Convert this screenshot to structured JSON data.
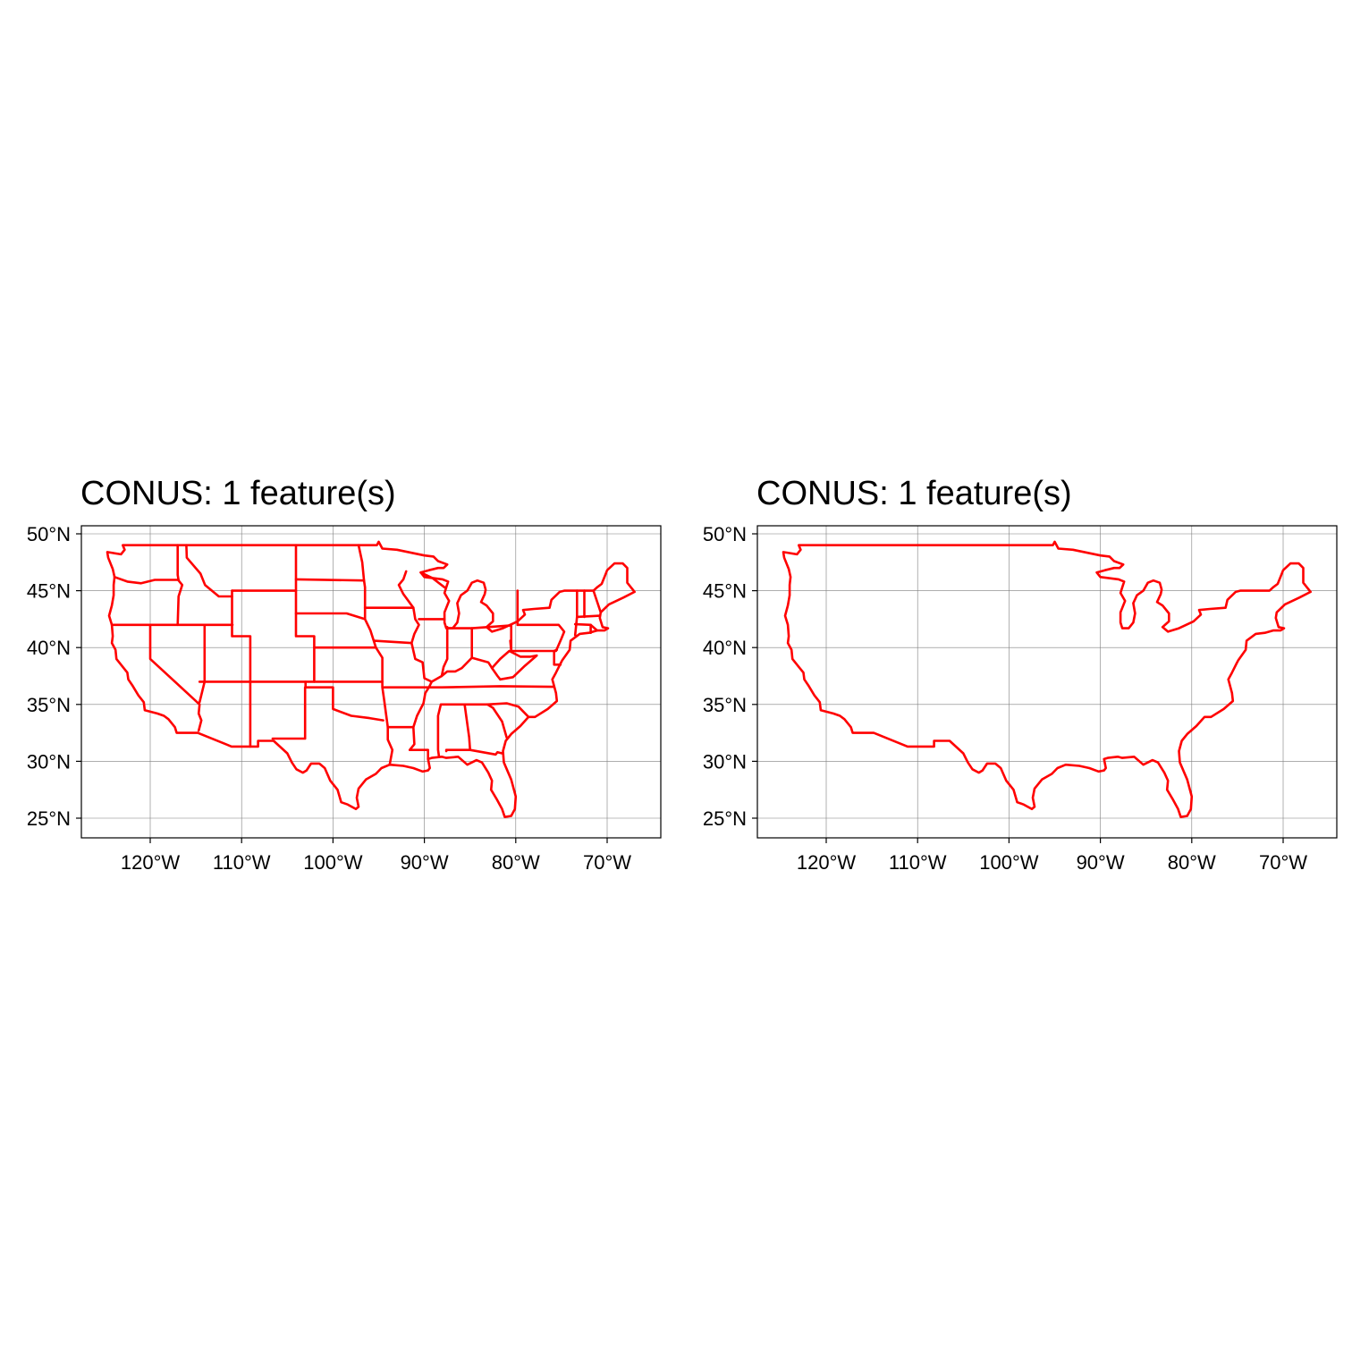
{
  "colors": {
    "outline": "#ff0000",
    "grid": "#7f7f7f",
    "frame": "#000000",
    "background": "#ffffff"
  },
  "axes": {
    "lon_ticks": [
      -120,
      -110,
      -100,
      -90,
      -80,
      -70
    ],
    "lat_ticks": [
      25,
      30,
      35,
      40,
      45,
      50
    ],
    "lon_labels": [
      "120°W",
      "110°W",
      "100°W",
      "90°W",
      "80°W",
      "70°W"
    ],
    "lat_labels": [
      "25°N",
      "30°N",
      "35°N",
      "40°N",
      "45°N",
      "50°N"
    ],
    "xlim": [
      -127.5,
      -64.2
    ],
    "ylim": [
      23.3,
      50.8
    ],
    "grid": true
  },
  "panels": [
    {
      "id": "left",
      "title": "CONUS: 1 feature(s)",
      "show_state_borders": true
    },
    {
      "id": "right",
      "title": "CONUS: 1 feature(s)",
      "show_state_borders": false
    }
  ],
  "map_data": {
    "conus_outline": [
      [
        -123.0,
        49.0
      ],
      [
        -95.2,
        49.0
      ],
      [
        -95.0,
        49.3
      ],
      [
        -94.6,
        48.7
      ],
      [
        -93.0,
        48.6
      ],
      [
        -90.0,
        48.1
      ],
      [
        -89.0,
        48.0
      ],
      [
        -88.5,
        47.6
      ],
      [
        -87.5,
        47.3
      ],
      [
        -87.9,
        47.0
      ],
      [
        -88.5,
        47.0
      ],
      [
        -89.5,
        46.8
      ],
      [
        -90.4,
        46.6
      ],
      [
        -90.0,
        46.2
      ],
      [
        -88.0,
        46.0
      ],
      [
        -87.4,
        45.8
      ],
      [
        -87.6,
        45.3
      ],
      [
        -87.8,
        44.8
      ],
      [
        -87.3,
        44.1
      ],
      [
        -87.8,
        43.1
      ],
      [
        -87.8,
        42.2
      ],
      [
        -87.6,
        41.7
      ],
      [
        -86.9,
        41.7
      ],
      [
        -86.4,
        42.2
      ],
      [
        -86.2,
        43.0
      ],
      [
        -86.4,
        43.9
      ],
      [
        -86.0,
        44.6
      ],
      [
        -85.3,
        45.0
      ],
      [
        -84.8,
        45.7
      ],
      [
        -84.2,
        45.9
      ],
      [
        -83.5,
        45.7
      ],
      [
        -83.3,
        45.1
      ],
      [
        -83.4,
        44.7
      ],
      [
        -83.8,
        44.0
      ],
      [
        -83.2,
        43.7
      ],
      [
        -82.5,
        43.0
      ],
      [
        -82.5,
        42.3
      ],
      [
        -83.2,
        41.8
      ],
      [
        -82.6,
        41.4
      ],
      [
        -81.4,
        41.7
      ],
      [
        -79.8,
        42.3
      ],
      [
        -79.0,
        42.9
      ],
      [
        -79.2,
        43.3
      ],
      [
        -78.0,
        43.4
      ],
      [
        -76.3,
        43.5
      ],
      [
        -76.1,
        44.2
      ],
      [
        -75.2,
        44.9
      ],
      [
        -74.7,
        45.0
      ],
      [
        -71.5,
        45.0
      ],
      [
        -71.1,
        45.3
      ],
      [
        -70.6,
        45.6
      ],
      [
        -70.2,
        46.4
      ],
      [
        -70.0,
        46.8
      ],
      [
        -69.2,
        47.4
      ],
      [
        -68.3,
        47.4
      ],
      [
        -67.8,
        47.0
      ],
      [
        -67.8,
        45.7
      ],
      [
        -67.0,
        44.9
      ],
      [
        -68.2,
        44.4
      ],
      [
        -69.8,
        43.8
      ],
      [
        -70.7,
        43.1
      ],
      [
        -70.8,
        42.6
      ],
      [
        -70.5,
        41.8
      ],
      [
        -69.9,
        41.7
      ],
      [
        -70.3,
        41.5
      ],
      [
        -71.1,
        41.5
      ],
      [
        -72.0,
        41.3
      ],
      [
        -73.0,
        41.2
      ],
      [
        -74.0,
        40.6
      ],
      [
        -74.1,
        39.8
      ],
      [
        -74.9,
        38.9
      ],
      [
        -75.1,
        38.6
      ],
      [
        -75.6,
        37.8
      ],
      [
        -76.0,
        37.2
      ],
      [
        -75.6,
        36.0
      ],
      [
        -75.5,
        35.3
      ],
      [
        -76.5,
        34.6
      ],
      [
        -77.9,
        33.9
      ],
      [
        -78.6,
        33.9
      ],
      [
        -79.5,
        33.1
      ],
      [
        -80.5,
        32.4
      ],
      [
        -81.1,
        31.8
      ],
      [
        -81.4,
        30.9
      ],
      [
        -81.3,
        29.9
      ],
      [
        -80.5,
        28.4
      ],
      [
        -80.0,
        26.9
      ],
      [
        -80.1,
        25.8
      ],
      [
        -80.5,
        25.2
      ],
      [
        -81.2,
        25.1
      ],
      [
        -81.5,
        25.8
      ],
      [
        -82.1,
        26.7
      ],
      [
        -82.7,
        27.5
      ],
      [
        -82.6,
        28.3
      ],
      [
        -83.0,
        29.0
      ],
      [
        -83.7,
        29.9
      ],
      [
        -84.3,
        30.1
      ],
      [
        -85.3,
        29.7
      ],
      [
        -86.3,
        30.4
      ],
      [
        -87.6,
        30.3
      ],
      [
        -88.1,
        30.4
      ],
      [
        -89.2,
        30.3
      ],
      [
        -89.6,
        30.2
      ],
      [
        -89.4,
        29.4
      ],
      [
        -89.6,
        29.2
      ],
      [
        -90.2,
        29.1
      ],
      [
        -91.2,
        29.4
      ],
      [
        -92.3,
        29.6
      ],
      [
        -93.8,
        29.7
      ],
      [
        -94.7,
        29.4
      ],
      [
        -95.3,
        28.9
      ],
      [
        -96.4,
        28.4
      ],
      [
        -97.2,
        27.6
      ],
      [
        -97.4,
        26.8
      ],
      [
        -97.2,
        26.0
      ],
      [
        -97.5,
        25.8
      ],
      [
        -98.4,
        26.2
      ],
      [
        -99.1,
        26.4
      ],
      [
        -99.5,
        27.5
      ],
      [
        -100.3,
        28.3
      ],
      [
        -100.9,
        29.4
      ],
      [
        -101.5,
        29.8
      ],
      [
        -102.4,
        29.8
      ],
      [
        -102.9,
        29.2
      ],
      [
        -103.3,
        29.0
      ],
      [
        -104.0,
        29.3
      ],
      [
        -104.5,
        29.9
      ],
      [
        -105.0,
        30.7
      ],
      [
        -106.5,
        31.8
      ],
      [
        -108.2,
        31.8
      ],
      [
        -108.2,
        31.3
      ],
      [
        -111.1,
        31.3
      ],
      [
        -114.8,
        32.5
      ],
      [
        -117.1,
        32.5
      ],
      [
        -117.3,
        33.0
      ],
      [
        -118.0,
        33.7
      ],
      [
        -118.5,
        34.0
      ],
      [
        -119.2,
        34.2
      ],
      [
        -120.6,
        34.5
      ],
      [
        -120.7,
        35.2
      ],
      [
        -121.3,
        35.8
      ],
      [
        -121.9,
        36.6
      ],
      [
        -122.4,
        37.2
      ],
      [
        -122.5,
        37.8
      ],
      [
        -123.0,
        38.3
      ],
      [
        -123.7,
        39.0
      ],
      [
        -123.8,
        39.8
      ],
      [
        -124.2,
        40.4
      ],
      [
        -124.1,
        41.0
      ],
      [
        -124.2,
        42.0
      ],
      [
        -124.5,
        42.8
      ],
      [
        -124.2,
        43.7
      ],
      [
        -124.0,
        44.6
      ],
      [
        -124.0,
        45.5
      ],
      [
        -123.9,
        46.2
      ],
      [
        -124.1,
        46.9
      ],
      [
        -124.6,
        47.9
      ],
      [
        -124.7,
        48.4
      ],
      [
        -123.2,
        48.2
      ],
      [
        -122.8,
        48.6
      ],
      [
        -123.0,
        49.0
      ]
    ],
    "state_borders": [
      [
        [
          -117.0,
          49.0
        ],
        [
          -117.0,
          46.4
        ],
        [
          -116.9,
          45.9
        ],
        [
          -116.5,
          45.5
        ],
        [
          -116.9,
          44.5
        ],
        [
          -117.0,
          42.0
        ]
      ],
      [
        [
          -124.2,
          42.0
        ],
        [
          -111.0,
          42.0
        ]
      ],
      [
        [
          -120.0,
          42.0
        ],
        [
          -120.0,
          39.0
        ],
        [
          -114.6,
          35.0
        ],
        [
          -114.7,
          34.2
        ],
        [
          -114.4,
          33.6
        ],
        [
          -114.7,
          32.7
        ]
      ],
      [
        [
          -123.9,
          46.2
        ],
        [
          -122.5,
          45.8
        ],
        [
          -121.0,
          45.65
        ],
        [
          -119.5,
          45.95
        ],
        [
          -116.9,
          45.95
        ]
      ],
      [
        [
          -114.05,
          42.0
        ],
        [
          -114.05,
          37.0
        ]
      ],
      [
        [
          -111.05,
          45.0
        ],
        [
          -111.05,
          41.0
        ],
        [
          -109.05,
          41.0
        ],
        [
          -109.05,
          31.3
        ]
      ],
      [
        [
          -114.6,
          37.0
        ],
        [
          -94.6,
          37.0
        ]
      ],
      [
        [
          -114.05,
          37.0
        ],
        [
          -114.6,
          35.2
        ]
      ],
      [
        [
          -111.05,
          45.0
        ],
        [
          -104.05,
          45.0
        ]
      ],
      [
        [
          -104.05,
          49.0
        ],
        [
          -104.05,
          41.0
        ],
        [
          -102.05,
          41.0
        ],
        [
          -102.05,
          37.0
        ]
      ],
      [
        [
          -111.05,
          44.5
        ],
        [
          -112.5,
          44.5
        ],
        [
          -114.0,
          45.5
        ],
        [
          -114.5,
          46.5
        ],
        [
          -116.0,
          47.9
        ],
        [
          -116.05,
          49.0
        ]
      ],
      [
        [
          -104.05,
          46.0
        ],
        [
          -96.6,
          45.9
        ]
      ],
      [
        [
          -104.05,
          43.0
        ],
        [
          -98.5,
          43.0
        ],
        [
          -96.5,
          42.5
        ]
      ],
      [
        [
          -102.05,
          40.0
        ],
        [
          -95.3,
          40.0
        ]
      ],
      [
        [
          -103.0,
          37.0
        ],
        [
          -103.0,
          36.5
        ],
        [
          -100.0,
          36.5
        ],
        [
          -100.0,
          34.6
        ],
        [
          -98.0,
          34.0
        ],
        [
          -96.0,
          33.8
        ],
        [
          -94.5,
          33.6
        ]
      ],
      [
        [
          -103.05,
          36.5
        ],
        [
          -103.05,
          32.0
        ],
        [
          -106.6,
          32.0
        ]
      ],
      [
        [
          -97.2,
          49.0
        ],
        [
          -96.8,
          47.5
        ],
        [
          -96.6,
          45.9
        ],
        [
          -96.5,
          45.3
        ],
        [
          -96.5,
          43.5
        ],
        [
          -96.5,
          42.5
        ],
        [
          -95.9,
          41.5
        ],
        [
          -95.3,
          40.0
        ],
        [
          -94.6,
          39.1
        ],
        [
          -94.6,
          36.5
        ],
        [
          -94.4,
          35.4
        ],
        [
          -94.0,
          33.0
        ],
        [
          -94.0,
          31.9
        ],
        [
          -93.5,
          31.0
        ],
        [
          -93.8,
          29.7
        ]
      ],
      [
        [
          -96.5,
          43.5
        ],
        [
          -91.2,
          43.5
        ]
      ],
      [
        [
          -95.5,
          40.6
        ],
        [
          -91.5,
          40.4
        ]
      ],
      [
        [
          -92.0,
          46.7
        ],
        [
          -92.3,
          46.0
        ],
        [
          -92.8,
          45.5
        ],
        [
          -92.3,
          44.7
        ],
        [
          -91.2,
          43.5
        ],
        [
          -91.0,
          42.5
        ],
        [
          -90.6,
          42.0
        ],
        [
          -91.1,
          41.2
        ],
        [
          -91.4,
          40.4
        ],
        [
          -91.0,
          39.0
        ],
        [
          -90.2,
          38.7
        ],
        [
          -90.0,
          37.3
        ],
        [
          -89.2,
          37.0
        ],
        [
          -89.5,
          36.5
        ],
        [
          -89.9,
          36.0
        ],
        [
          -90.1,
          35.1
        ],
        [
          -90.8,
          34.0
        ],
        [
          -91.2,
          33.0
        ],
        [
          -91.1,
          31.5
        ],
        [
          -91.6,
          31.0
        ],
        [
          -89.6,
          31.0
        ],
        [
          -89.6,
          30.2
        ]
      ],
      [
        [
          -94.4,
          36.5
        ],
        [
          -89.5,
          36.5
        ],
        [
          -88.1,
          36.5
        ],
        [
          -81.7,
          36.6
        ],
        [
          -75.9,
          36.55
        ]
      ],
      [
        [
          -94.0,
          33.0
        ],
        [
          -91.2,
          33.0
        ]
      ],
      [
        [
          -90.4,
          46.6
        ],
        [
          -89.1,
          46.1
        ],
        [
          -87.8,
          45.3
        ]
      ],
      [
        [
          -90.6,
          42.5
        ],
        [
          -87.8,
          42.5
        ]
      ],
      [
        [
          -87.5,
          41.8
        ],
        [
          -87.5,
          39.0
        ],
        [
          -87.9,
          38.3
        ],
        [
          -88.1,
          37.5
        ]
      ],
      [
        [
          -87.5,
          41.7
        ],
        [
          -84.8,
          41.7
        ],
        [
          -80.5,
          41.95
        ]
      ],
      [
        [
          -84.8,
          41.7
        ],
        [
          -84.8,
          39.1
        ]
      ],
      [
        [
          -89.2,
          37.0
        ],
        [
          -88.1,
          37.5
        ],
        [
          -87.5,
          37.9
        ],
        [
          -86.6,
          37.9
        ],
        [
          -85.9,
          38.2
        ],
        [
          -84.8,
          39.1
        ],
        [
          -83.0,
          38.7
        ],
        [
          -82.6,
          38.2
        ],
        [
          -82.0,
          37.5
        ],
        [
          -81.7,
          37.2
        ]
      ],
      [
        [
          -80.5,
          42.0
        ],
        [
          -80.5,
          39.7
        ],
        [
          -80.6,
          40.6
        ]
      ],
      [
        [
          -82.6,
          38.2
        ],
        [
          -81.7,
          39.0
        ],
        [
          -80.7,
          39.7
        ],
        [
          -79.5,
          39.2
        ],
        [
          -78.4,
          39.2
        ],
        [
          -77.7,
          39.3
        ],
        [
          -79.0,
          38.4
        ],
        [
          -80.3,
          37.4
        ],
        [
          -81.7,
          37.2
        ]
      ],
      [
        [
          -80.5,
          39.7
        ],
        [
          -75.8,
          39.7
        ],
        [
          -75.5,
          39.8
        ]
      ],
      [
        [
          -79.8,
          42.0
        ],
        [
          -75.3,
          42.0
        ],
        [
          -75.1,
          41.8
        ],
        [
          -74.7,
          41.4
        ],
        [
          -75.0,
          40.8
        ],
        [
          -75.6,
          39.7
        ]
      ],
      [
        [
          -75.8,
          39.7
        ],
        [
          -75.8,
          38.5
        ],
        [
          -75.1,
          38.5
        ]
      ],
      [
        [
          -88.1,
          35.0
        ],
        [
          -84.3,
          35.0
        ],
        [
          -83.1,
          35.0
        ],
        [
          -81.0,
          35.1
        ],
        [
          -79.7,
          34.8
        ],
        [
          -78.6,
          33.9
        ]
      ],
      [
        [
          -88.2,
          35.0
        ],
        [
          -88.5,
          34.0
        ],
        [
          -88.5,
          31.0
        ],
        [
          -88.4,
          30.4
        ]
      ],
      [
        [
          -85.6,
          35.0
        ],
        [
          -85.1,
          32.1
        ],
        [
          -85.0,
          31.0
        ],
        [
          -87.6,
          31.0
        ],
        [
          -87.6,
          30.9
        ]
      ],
      [
        [
          -85.0,
          31.0
        ],
        [
          -82.2,
          30.6
        ],
        [
          -82.0,
          30.8
        ],
        [
          -81.5,
          30.7
        ]
      ],
      [
        [
          -83.1,
          35.0
        ],
        [
          -82.5,
          34.7
        ],
        [
          -81.5,
          33.5
        ],
        [
          -81.0,
          32.1
        ]
      ],
      [
        [
          -79.8,
          45.0
        ],
        [
          -79.8,
          42.0
        ]
      ],
      [
        [
          -73.3,
          45.0
        ],
        [
          -73.3,
          42.7
        ],
        [
          -73.5,
          41.1
        ]
      ],
      [
        [
          -71.5,
          45.0
        ],
        [
          -71.0,
          43.8
        ],
        [
          -70.7,
          43.1
        ]
      ],
      [
        [
          -72.5,
          45.0
        ],
        [
          -72.5,
          42.7
        ]
      ],
      [
        [
          -73.5,
          42.05
        ],
        [
          -71.8,
          42.0
        ],
        [
          -71.1,
          41.5
        ]
      ],
      [
        [
          -73.3,
          42.7
        ],
        [
          -70.8,
          42.8
        ]
      ],
      [
        [
          -71.8,
          42.0
        ],
        [
          -71.8,
          41.3
        ]
      ]
    ]
  }
}
